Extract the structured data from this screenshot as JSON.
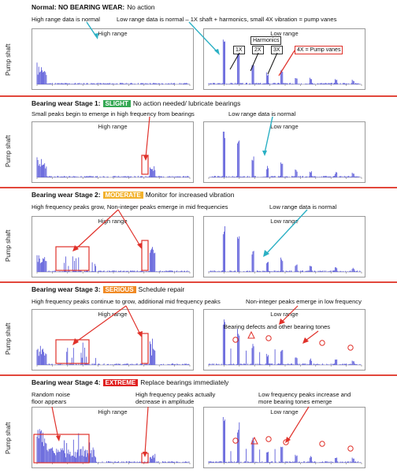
{
  "y_label": "Pump shaft",
  "panels": [
    {
      "title": "Normal: NO BEARING WEAR:",
      "action": "No action",
      "notes": [
        "High range data is normal",
        "Low range data is normal – 1X shaft + harmonics, small 4X vibration = pump vanes"
      ],
      "high_label": "High range",
      "low_label": "Low range",
      "harmonics_label": "Harmonics",
      "harmonics": [
        "1X",
        "2X",
        "3X"
      ],
      "vanes_label": "4X = Pump vanes"
    },
    {
      "title": "Bearing wear Stage 1:",
      "badge": "SLIGHT",
      "badge_color": "#34a853",
      "action": "No action needed/ lubricate bearings",
      "notes": [
        "Small peaks begin to emerge in high frequency from bearings",
        "Low range data is normal"
      ],
      "high_label": "High range",
      "low_label": "Low range"
    },
    {
      "title": "Bearing wear Stage 2:",
      "badge": "MODERATE",
      "badge_color": "#f2b12c",
      "action": "Monitor for increased vibration",
      "notes": [
        "High frequency peaks grow, Non-integer peaks emerge in mid frequencies",
        "Low range data is normal"
      ],
      "high_label": "High range",
      "low_label": "Low range"
    },
    {
      "title": "Bearing wear Stage 3:",
      "badge": "SERIOUS",
      "badge_color": "#f08a24",
      "action": "Schedule repair",
      "notes": [
        "High frequency peaks continue to grow, additional mid frequency peaks",
        "Non-integer peaks emerge in low frequency"
      ],
      "high_label": "High range",
      "low_label": "Low range",
      "defect_label": "Bearing defects and other bearing tones"
    },
    {
      "title": "Bearing wear Stage 4:",
      "badge": "EXTREME",
      "badge_color": "#e02020",
      "action": "Replace bearings immediately",
      "notes": [
        "Random noise\nfloor appears",
        "High frequency peaks actually\ndecrease in amplitude",
        "Low frequency peaks increase and\nmore bearing tones emerge"
      ],
      "high_label": "High range",
      "low_label": "Low range"
    }
  ],
  "colors": {
    "spectrum": "#4b4bd6",
    "annotation_red": "#e0312a",
    "arrow_teal": "#2bb0c4",
    "divider": "#e2473b"
  }
}
